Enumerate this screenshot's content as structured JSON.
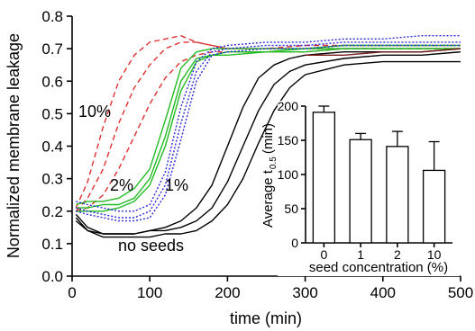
{
  "chart_data": [
    {
      "type": "line",
      "xlabel": "time (min)",
      "ylabel": "Normalized membrane leakage",
      "xlim": [
        0,
        500
      ],
      "ylim": [
        0.0,
        0.8
      ],
      "x_ticks": [
        "0",
        "100",
        "200",
        "300",
        "400",
        "500"
      ],
      "y_ticks": [
        "0.0",
        "0.1",
        "0.2",
        "0.3",
        "0.4",
        "0.5",
        "0.6",
        "0.7",
        "0.8"
      ],
      "grid": false,
      "annotations": [
        "10%",
        "2%",
        "1%",
        "no seeds"
      ],
      "series": [
        {
          "color": "#e03030",
          "dash": "dashed",
          "x": [
            5,
            20,
            40,
            60,
            80,
            100,
            120,
            140,
            160,
            180,
            200,
            250,
            300,
            350,
            400,
            450,
            500
          ],
          "y": [
            0.21,
            0.29,
            0.46,
            0.6,
            0.68,
            0.72,
            0.73,
            0.74,
            0.72,
            0.71,
            0.7,
            0.7,
            0.71,
            0.71,
            0.71,
            0.71,
            0.71
          ]
        },
        {
          "color": "#e03030",
          "dash": "dashed",
          "x": [
            5,
            20,
            40,
            60,
            80,
            100,
            120,
            140,
            160,
            180,
            200,
            250,
            300,
            350,
            400,
            450,
            500
          ],
          "y": [
            0.2,
            0.24,
            0.33,
            0.47,
            0.58,
            0.65,
            0.7,
            0.72,
            0.72,
            0.71,
            0.7,
            0.7,
            0.7,
            0.7,
            0.7,
            0.7,
            0.7
          ]
        },
        {
          "color": "#e03030",
          "dash": "dashed",
          "x": [
            5,
            20,
            40,
            60,
            80,
            100,
            120,
            140,
            160,
            180,
            200,
            250,
            300,
            350,
            400,
            450,
            500
          ],
          "y": [
            0.2,
            0.21,
            0.25,
            0.33,
            0.43,
            0.53,
            0.61,
            0.66,
            0.68,
            0.69,
            0.69,
            0.69,
            0.69,
            0.7,
            0.7,
            0.7,
            0.7
          ]
        },
        {
          "color": "#22bb22",
          "dash": "solid",
          "x": [
            5,
            20,
            40,
            60,
            80,
            100,
            120,
            140,
            160,
            180,
            200,
            250,
            300,
            350,
            400,
            450,
            500
          ],
          "y": [
            0.22,
            0.23,
            0.23,
            0.24,
            0.27,
            0.33,
            0.48,
            0.64,
            0.69,
            0.7,
            0.7,
            0.7,
            0.7,
            0.71,
            0.71,
            0.71,
            0.71
          ]
        },
        {
          "color": "#22bb22",
          "dash": "solid",
          "x": [
            5,
            20,
            40,
            60,
            80,
            100,
            120,
            140,
            160,
            180,
            200,
            250,
            300,
            350,
            400,
            450,
            500
          ],
          "y": [
            0.21,
            0.21,
            0.22,
            0.22,
            0.24,
            0.3,
            0.43,
            0.6,
            0.67,
            0.68,
            0.69,
            0.69,
            0.7,
            0.7,
            0.7,
            0.7,
            0.7
          ]
        },
        {
          "color": "#22bb22",
          "dash": "solid",
          "x": [
            5,
            20,
            40,
            60,
            80,
            100,
            120,
            140,
            160,
            180,
            200,
            250,
            300,
            350,
            400,
            450,
            500
          ],
          "y": [
            0.2,
            0.2,
            0.2,
            0.21,
            0.23,
            0.28,
            0.4,
            0.57,
            0.66,
            0.68,
            0.68,
            0.69,
            0.69,
            0.7,
            0.7,
            0.7,
            0.7
          ]
        },
        {
          "color": "#2a2ad8",
          "dash": "dotted",
          "x": [
            5,
            20,
            40,
            60,
            80,
            100,
            120,
            140,
            160,
            180,
            200,
            250,
            300,
            350,
            400,
            450,
            500
          ],
          "y": [
            0.23,
            0.22,
            0.21,
            0.2,
            0.2,
            0.22,
            0.32,
            0.52,
            0.66,
            0.7,
            0.71,
            0.72,
            0.72,
            0.73,
            0.73,
            0.74,
            0.74
          ]
        },
        {
          "color": "#2a2ad8",
          "dash": "dotted",
          "x": [
            5,
            20,
            40,
            60,
            80,
            100,
            120,
            140,
            160,
            180,
            200,
            250,
            300,
            350,
            400,
            450,
            500
          ],
          "y": [
            0.21,
            0.2,
            0.19,
            0.18,
            0.18,
            0.2,
            0.28,
            0.47,
            0.63,
            0.69,
            0.7,
            0.71,
            0.71,
            0.72,
            0.72,
            0.72,
            0.72
          ]
        },
        {
          "color": "#2a2ad8",
          "dash": "dotted",
          "x": [
            5,
            20,
            40,
            60,
            80,
            100,
            120,
            140,
            160,
            180,
            200,
            250,
            300,
            350,
            400,
            450,
            500
          ],
          "y": [
            0.2,
            0.19,
            0.18,
            0.17,
            0.17,
            0.18,
            0.25,
            0.42,
            0.6,
            0.68,
            0.69,
            0.7,
            0.7,
            0.71,
            0.71,
            0.71,
            0.71
          ]
        },
        {
          "color": "#000000",
          "dash": "solid",
          "x": [
            5,
            20,
            40,
            60,
            80,
            100,
            120,
            140,
            160,
            180,
            200,
            220,
            240,
            260,
            280,
            300,
            350,
            400,
            450,
            500
          ],
          "y": [
            0.19,
            0.15,
            0.13,
            0.13,
            0.13,
            0.14,
            0.15,
            0.17,
            0.21,
            0.28,
            0.4,
            0.52,
            0.61,
            0.65,
            0.67,
            0.68,
            0.69,
            0.69,
            0.69,
            0.7
          ]
        },
        {
          "color": "#000000",
          "dash": "solid",
          "x": [
            5,
            20,
            40,
            60,
            80,
            100,
            120,
            140,
            160,
            180,
            200,
            220,
            240,
            260,
            280,
            300,
            350,
            400,
            450,
            500
          ],
          "y": [
            0.18,
            0.14,
            0.13,
            0.13,
            0.13,
            0.14,
            0.14,
            0.15,
            0.17,
            0.21,
            0.29,
            0.4,
            0.51,
            0.59,
            0.63,
            0.65,
            0.67,
            0.68,
            0.68,
            0.69
          ]
        },
        {
          "color": "#000000",
          "dash": "solid",
          "x": [
            5,
            20,
            40,
            60,
            80,
            100,
            120,
            140,
            160,
            180,
            200,
            220,
            240,
            260,
            280,
            300,
            350,
            400,
            450,
            500
          ],
          "y": [
            0.17,
            0.14,
            0.12,
            0.12,
            0.12,
            0.12,
            0.13,
            0.13,
            0.14,
            0.17,
            0.22,
            0.3,
            0.41,
            0.51,
            0.58,
            0.62,
            0.65,
            0.66,
            0.66,
            0.66
          ]
        },
        {
          "color": "#7a1a1a",
          "dash": "solid",
          "x": [
            300,
            350,
            400,
            450,
            500
          ],
          "y": [
            0.68,
            0.68,
            0.69,
            0.69,
            0.7
          ]
        }
      ]
    },
    {
      "type": "bar",
      "xlabel": "seed concentration (%)",
      "ylabel": "Average t",
      "ylabel_sub": "0.5",
      "ylabel_unit": "(min)",
      "categories": [
        "0",
        "1",
        "2",
        "10"
      ],
      "values": [
        191,
        151,
        141,
        106
      ],
      "errors": [
        9,
        9,
        22,
        42
      ],
      "ylim": [
        0,
        200
      ],
      "y_ticks": [
        "0",
        "50",
        "100",
        "150",
        "200"
      ]
    }
  ]
}
